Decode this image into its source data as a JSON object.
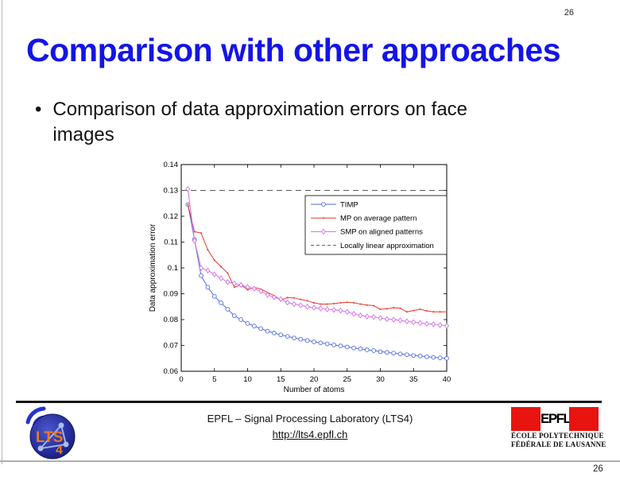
{
  "page": {
    "top_page_number": "26",
    "bottom_page_number": "26"
  },
  "slide": {
    "title": "Comparison with other approaches",
    "title_color": "#1414e8",
    "bullet_marker": "•",
    "bullet": "Comparison of data approximation errors on face images"
  },
  "footer": {
    "lab_line": "EPFL – Signal Processing Laboratory (LTS4)",
    "link": "http://lts4.epfl.ch",
    "lts4_logo": {
      "text": "LTS",
      "four": "4"
    },
    "epfl_logo": {
      "glyph": "EPFL",
      "line1": "ÉCOLE POLYTECHNIQUE",
      "line2": "FÉDÉRALE DE LAUSANNE",
      "red": "#e81410"
    }
  },
  "chart_data": {
    "type": "line",
    "title": "",
    "xlabel": "Number of atoms",
    "ylabel": "Data approximation error",
    "xlim": [
      0,
      40
    ],
    "ylim": [
      0.06,
      0.14
    ],
    "xticks": [
      0,
      5,
      10,
      15,
      20,
      25,
      30,
      35,
      40
    ],
    "yticks": [
      0.06,
      0.07,
      0.08,
      0.09,
      0.1,
      0.11,
      0.12,
      0.13,
      0.14
    ],
    "ytick_labels": [
      "0.06",
      "0.07",
      "0.08",
      "0.09",
      "0.1",
      "0.11",
      "0.12",
      "0.13",
      "0.14"
    ],
    "grid": false,
    "legend_position": "upper-right-inside",
    "x": [
      1,
      2,
      3,
      4,
      5,
      6,
      7,
      8,
      9,
      10,
      11,
      12,
      13,
      14,
      15,
      16,
      17,
      18,
      19,
      20,
      21,
      22,
      23,
      24,
      25,
      26,
      27,
      28,
      29,
      30,
      31,
      32,
      33,
      34,
      35,
      36,
      37,
      38,
      39,
      40
    ],
    "series": [
      {
        "name": "TIMP",
        "color": "#4f6cd9",
        "marker": "circle",
        "line_style": "solid",
        "values": [
          0.1245,
          0.111,
          0.097,
          0.0925,
          0.089,
          0.0865,
          0.084,
          0.0815,
          0.08,
          0.0785,
          0.0775,
          0.0765,
          0.0755,
          0.0748,
          0.0741,
          0.0735,
          0.0729,
          0.0724,
          0.0719,
          0.0714,
          0.071,
          0.0706,
          0.0702,
          0.0698,
          0.0694,
          0.069,
          0.0687,
          0.0683,
          0.068,
          0.0676,
          0.0673,
          0.067,
          0.0667,
          0.0664,
          0.0661,
          0.0659,
          0.0656,
          0.0654,
          0.0652,
          0.065
        ]
      },
      {
        "name": "MP on average pattern",
        "color": "#e63a2e",
        "marker": "dot",
        "line_style": "solid",
        "values": [
          0.1245,
          0.114,
          0.1135,
          0.107,
          0.103,
          0.1005,
          0.098,
          0.0925,
          0.0935,
          0.0915,
          0.0925,
          0.0918,
          0.0905,
          0.0893,
          0.0875,
          0.0885,
          0.0884,
          0.0878,
          0.0873,
          0.0865,
          0.086,
          0.086,
          0.0862,
          0.0865,
          0.0867,
          0.0865,
          0.086,
          0.0856,
          0.0854,
          0.084,
          0.0842,
          0.0846,
          0.0844,
          0.083,
          0.0835,
          0.084,
          0.0834,
          0.083,
          0.083,
          0.083
        ]
      },
      {
        "name": "SMP on aligned patterns",
        "color": "#d16ee6",
        "marker": "diamond",
        "line_style": "solid",
        "values": [
          0.1305,
          0.1105,
          0.1,
          0.099,
          0.0975,
          0.096,
          0.0945,
          0.094,
          0.0934,
          0.0926,
          0.092,
          0.091,
          0.0896,
          0.0886,
          0.0879,
          0.0866,
          0.086,
          0.0855,
          0.085,
          0.0846,
          0.0843,
          0.084,
          0.0838,
          0.0835,
          0.083,
          0.0822,
          0.0816,
          0.0812,
          0.081,
          0.0806,
          0.0802,
          0.08,
          0.0797,
          0.0793,
          0.079,
          0.0787,
          0.0784,
          0.0782,
          0.0779,
          0.0776
        ]
      },
      {
        "name": "Locally linear approximation",
        "color": "#5a5a5a",
        "marker": "none",
        "line_style": "dashed",
        "x": [
          0,
          40
        ],
        "values": [
          0.13,
          0.13
        ]
      }
    ]
  }
}
